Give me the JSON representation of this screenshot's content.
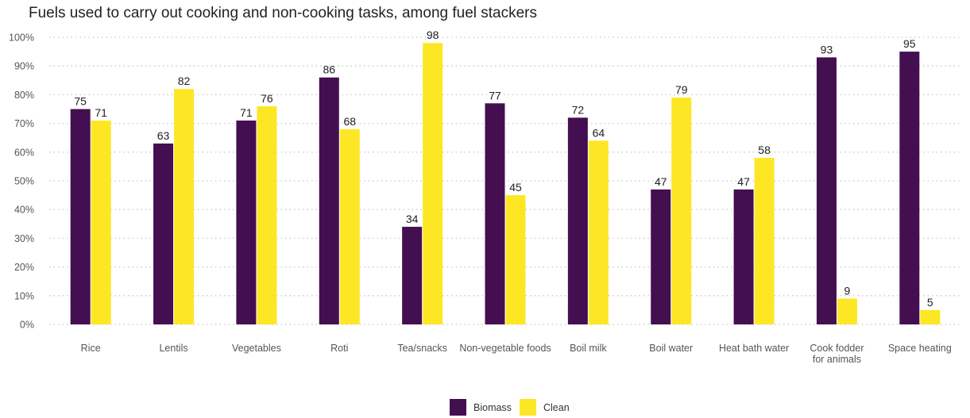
{
  "chart_data": {
    "type": "bar",
    "title": "Fuels used to carry out cooking and non-cooking tasks, among fuel stackers",
    "xlabel": "",
    "ylabel": "",
    "ylim": [
      0,
      100
    ],
    "y_ticks": [
      "0%",
      "10%",
      "20%",
      "30%",
      "40%",
      "50%",
      "60%",
      "70%",
      "80%",
      "90%",
      "100%"
    ],
    "grid": "horizontal dotted",
    "legend_position": "bottom",
    "categories": [
      "Rice",
      "Lentils",
      "Vegetables",
      "Roti",
      "Tea/snacks",
      "Non-vegetable foods",
      "Boil milk",
      "Boil water",
      "Heat bath water",
      "Cook fodder\nfor animals",
      "Space heating"
    ],
    "series": [
      {
        "name": "Biomass",
        "color": "#440f50",
        "values": [
          75,
          63,
          71,
          86,
          34,
          77,
          72,
          47,
          47,
          93,
          95
        ]
      },
      {
        "name": "Clean",
        "color": "#fde725",
        "values": [
          71,
          82,
          76,
          68,
          98,
          45,
          64,
          79,
          58,
          9,
          5
        ]
      }
    ],
    "data_labels": [
      [
        "75",
        "63",
        "71",
        "86",
        "34",
        "77",
        "72",
        "47",
        "47",
        "93",
        "95"
      ],
      [
        "71",
        "82",
        "76",
        "68",
        "98",
        "45",
        "64",
        "79",
        "58",
        "9",
        "5"
      ]
    ]
  }
}
